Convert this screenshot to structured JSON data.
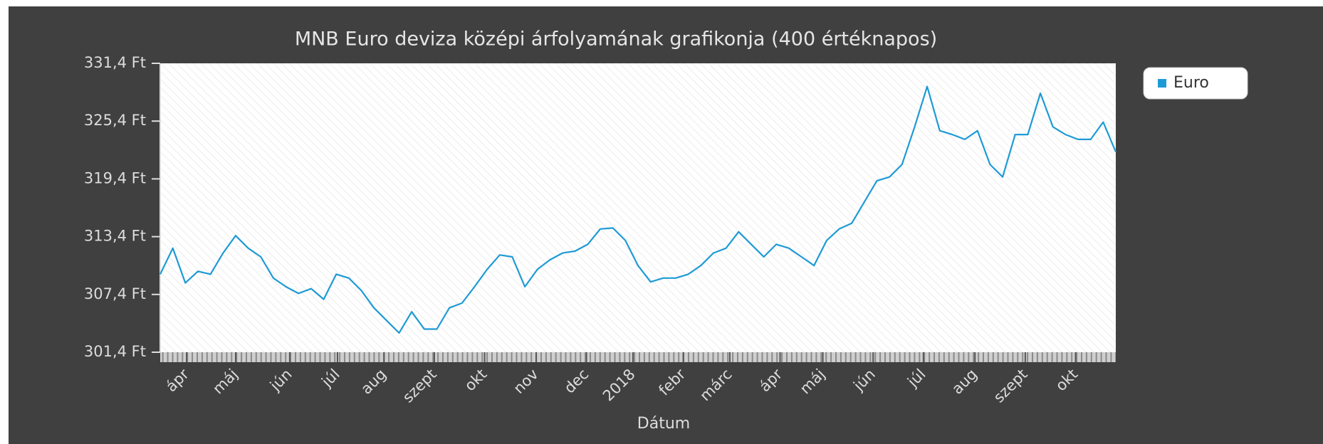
{
  "chart_data": {
    "type": "line",
    "title": "MNB Euro deviza középi árfolyamának grafikonja (400 értéknapos)",
    "xlabel": "Dátum",
    "ylim": [
      301.4,
      331.4
    ],
    "yticks": [
      {
        "value": 301.4,
        "label": "301,4 Ft"
      },
      {
        "value": 307.4,
        "label": "307,4 Ft"
      },
      {
        "value": 313.4,
        "label": "313,4 Ft"
      },
      {
        "value": 319.4,
        "label": "319,4 Ft"
      },
      {
        "value": 325.4,
        "label": "325,4 Ft"
      },
      {
        "value": 331.4,
        "label": "331,4 Ft"
      }
    ],
    "xlim": [
      0,
      76
    ],
    "xticks": [
      {
        "value": 2.1,
        "label": "ápr"
      },
      {
        "value": 6.0,
        "label": "máj"
      },
      {
        "value": 10.3,
        "label": "jún"
      },
      {
        "value": 14.1,
        "label": "júl"
      },
      {
        "value": 17.8,
        "label": "aug"
      },
      {
        "value": 21.8,
        "label": "szept"
      },
      {
        "value": 25.8,
        "label": "okt"
      },
      {
        "value": 29.9,
        "label": "nov"
      },
      {
        "value": 33.9,
        "label": "dec"
      },
      {
        "value": 37.6,
        "label": "2018"
      },
      {
        "value": 41.6,
        "label": "febr"
      },
      {
        "value": 45.3,
        "label": "márc"
      },
      {
        "value": 49.3,
        "label": "ápr"
      },
      {
        "value": 52.7,
        "label": "máj"
      },
      {
        "value": 56.7,
        "label": "jún"
      },
      {
        "value": 60.7,
        "label": "júl"
      },
      {
        "value": 64.8,
        "label": "aug"
      },
      {
        "value": 68.8,
        "label": "szept"
      },
      {
        "value": 72.8,
        "label": "okt"
      }
    ],
    "legend": "upper right",
    "series": [
      {
        "name": "Euro",
        "color": "#1e9ad6",
        "values": [
          309.5,
          312.2,
          308.6,
          309.8,
          309.5,
          311.7,
          313.5,
          312.2,
          311.3,
          309.1,
          308.2,
          307.5,
          308.0,
          306.9,
          309.5,
          309.1,
          307.8,
          306.0,
          304.7,
          303.4,
          305.6,
          303.8,
          303.8,
          306.0,
          306.5,
          308.2,
          310.0,
          311.5,
          311.3,
          308.2,
          310.0,
          311.0,
          311.7,
          311.9,
          312.6,
          314.2,
          314.3,
          313.0,
          310.4,
          308.7,
          309.1,
          309.1,
          309.5,
          310.4,
          311.7,
          312.2,
          313.9,
          312.6,
          311.3,
          312.6,
          312.2,
          311.3,
          310.4,
          313.0,
          314.2,
          314.8,
          317.0,
          319.2,
          319.6,
          320.9,
          324.8,
          329.0,
          324.4,
          324.0,
          323.5,
          324.4,
          320.9,
          319.6,
          324.0,
          324.0,
          328.3,
          324.8,
          324.0,
          323.5,
          323.5,
          325.3,
          322.2
        ]
      }
    ]
  }
}
